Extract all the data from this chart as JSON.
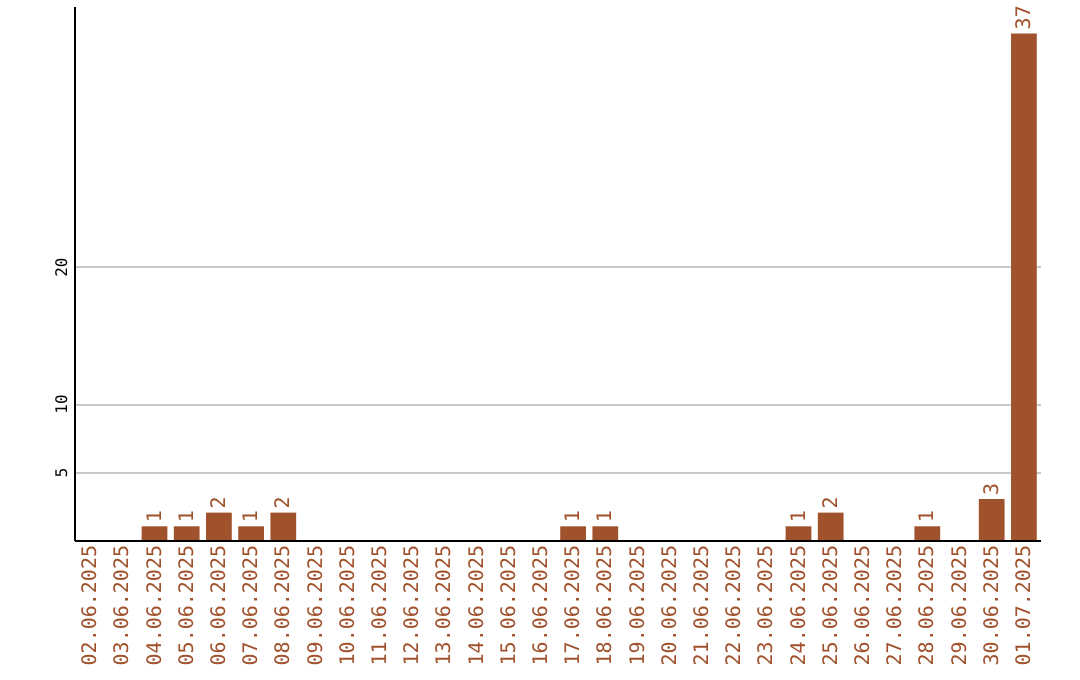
{
  "chart_data": {
    "type": "bar",
    "categories": [
      "02.06.2025",
      "03.06.2025",
      "04.06.2025",
      "05.06.2025",
      "06.06.2025",
      "07.06.2025",
      "08.06.2025",
      "09.06.2025",
      "10.06.2025",
      "11.06.2025",
      "12.06.2025",
      "13.06.2025",
      "14.06.2025",
      "15.06.2025",
      "16.06.2025",
      "17.06.2025",
      "18.06.2025",
      "19.06.2025",
      "20.06.2025",
      "21.06.2025",
      "22.06.2025",
      "23.06.2025",
      "24.06.2025",
      "25.06.2025",
      "26.06.2025",
      "27.06.2025",
      "28.06.2025",
      "29.06.2025",
      "30.06.2025",
      "01.07.2025"
    ],
    "values": [
      0,
      0,
      1,
      1,
      2,
      1,
      2,
      0,
      0,
      0,
      0,
      0,
      0,
      0,
      0,
      1,
      1,
      0,
      0,
      0,
      0,
      0,
      1,
      2,
      0,
      0,
      1,
      0,
      3,
      37
    ],
    "value_labels": [
      null,
      null,
      "1",
      "1",
      "2",
      "1",
      "2",
      null,
      null,
      null,
      null,
      null,
      null,
      null,
      null,
      "1",
      "1",
      null,
      null,
      null,
      null,
      null,
      "1",
      "2",
      null,
      null,
      "1",
      null,
      "3",
      "37"
    ],
    "color": "#a0522d",
    "ylim": [
      0,
      39
    ],
    "yticks": [
      5,
      10,
      20
    ],
    "grid": "y"
  }
}
